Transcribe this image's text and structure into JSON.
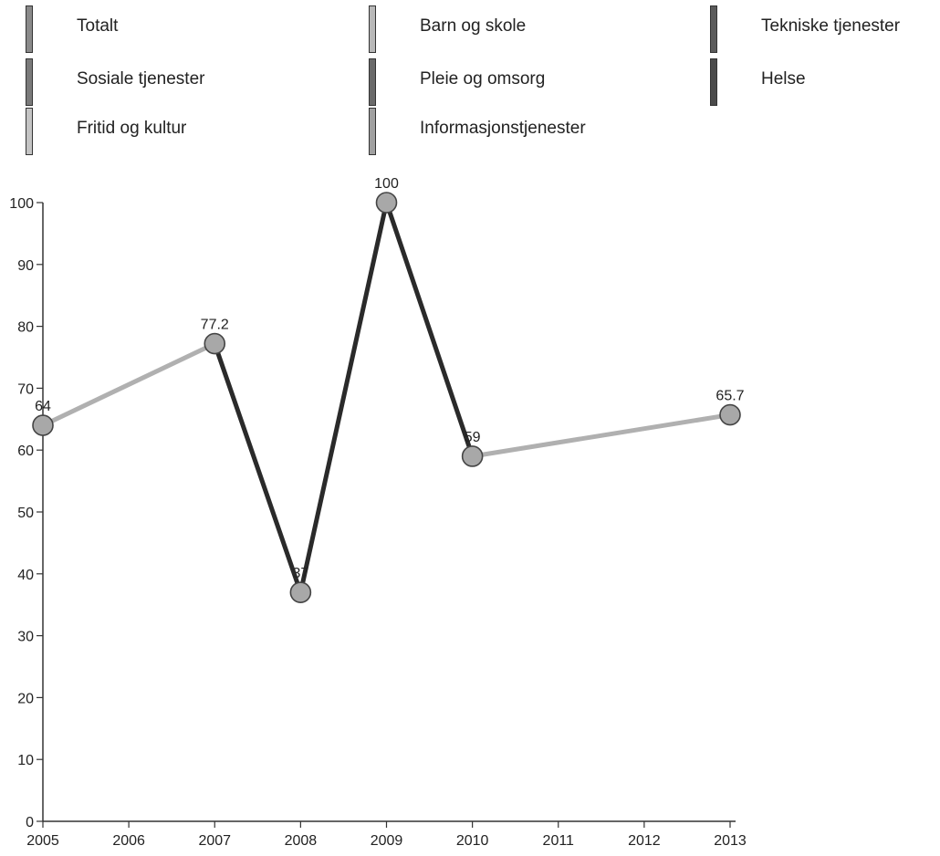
{
  "legend": {
    "items": [
      {
        "label": "Totalt",
        "color": "#8a8a8a"
      },
      {
        "label": "Barn og skole",
        "color": "#b8b8b8"
      },
      {
        "label": "Tekniske tjenester",
        "color": "#5a5a5a"
      },
      {
        "label": "Sosiale tjenester",
        "color": "#7a7a7a"
      },
      {
        "label": "Pleie og omsorg",
        "color": "#6a6a6a"
      },
      {
        "label": "Helse",
        "color": "#4a4a4a"
      },
      {
        "label": "Fritid og kultur",
        "color": "#c4c4c4"
      },
      {
        "label": "Informasjonstjenester",
        "color": "#a0a0a0"
      }
    ]
  },
  "chart_data": {
    "type": "line",
    "x": [
      2005,
      2007,
      2008,
      2009,
      2010,
      2013
    ],
    "y": [
      64,
      77.2,
      37,
      100,
      59,
      65.7
    ],
    "data_labels": [
      "64",
      "77.2",
      "37",
      "100",
      "59",
      "65.7"
    ],
    "x_ticks": [
      "2005",
      "2006",
      "2007",
      "2008",
      "2009",
      "2010",
      "2011",
      "2012",
      "2013"
    ],
    "y_ticks": [
      "0",
      "10",
      "20",
      "30",
      "40",
      "50",
      "60",
      "70",
      "80",
      "90",
      "100"
    ],
    "xlim": [
      2005,
      2013
    ],
    "ylim": [
      0,
      100
    ],
    "segment_colors": [
      "#b0b0b0",
      "#2a2a2a",
      "#2a2a2a",
      "#2a2a2a",
      "#b0b0b0"
    ],
    "marker_color": "#a8a8a8",
    "grid": false,
    "legend_position": "top"
  }
}
